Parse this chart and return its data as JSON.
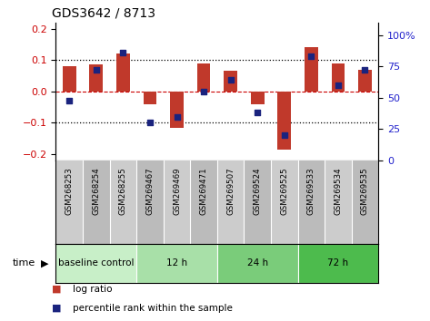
{
  "title": "GDS3642 / 8713",
  "samples": [
    "GSM268253",
    "GSM268254",
    "GSM268255",
    "GSM269467",
    "GSM269469",
    "GSM269471",
    "GSM269507",
    "GSM269524",
    "GSM269525",
    "GSM269533",
    "GSM269534",
    "GSM269535"
  ],
  "log_ratio": [
    0.08,
    0.085,
    0.12,
    -0.04,
    -0.115,
    0.09,
    0.065,
    -0.04,
    -0.185,
    0.14,
    0.09,
    0.07
  ],
  "percentile": [
    48,
    72,
    86,
    30,
    35,
    55,
    64,
    38,
    20,
    83,
    60,
    72
  ],
  "groups": [
    {
      "label": "baseline control",
      "start": 0,
      "end": 3,
      "color": "#c8efc8"
    },
    {
      "label": "12 h",
      "start": 3,
      "end": 6,
      "color": "#a8e0a8"
    },
    {
      "label": "24 h",
      "start": 6,
      "end": 9,
      "color": "#7acc7a"
    },
    {
      "label": "72 h",
      "start": 9,
      "end": 12,
      "color": "#4dbb4d"
    }
  ],
  "bar_color": "#c0392b",
  "dot_color": "#1a237e",
  "bg_plot": "#ffffff",
  "sample_bg": "#cccccc",
  "ylim_left": [
    -0.22,
    0.22
  ],
  "ylim_right": [
    0,
    110
  ],
  "yticks_left": [
    -0.2,
    -0.1,
    0,
    0.1,
    0.2
  ],
  "yticks_right": [
    0,
    25,
    50,
    75,
    100
  ],
  "ytick_right_labels": [
    "0",
    "25",
    "50",
    "75",
    "100%"
  ],
  "hlines_dotted": [
    -0.1,
    0.1
  ],
  "hline_dashed": 0,
  "left_ylabel_color": "#cc0000",
  "right_ylabel_color": "#2222cc",
  "bar_width": 0.5,
  "legend_red_label": "log ratio",
  "legend_blue_label": "percentile rank within the sample"
}
